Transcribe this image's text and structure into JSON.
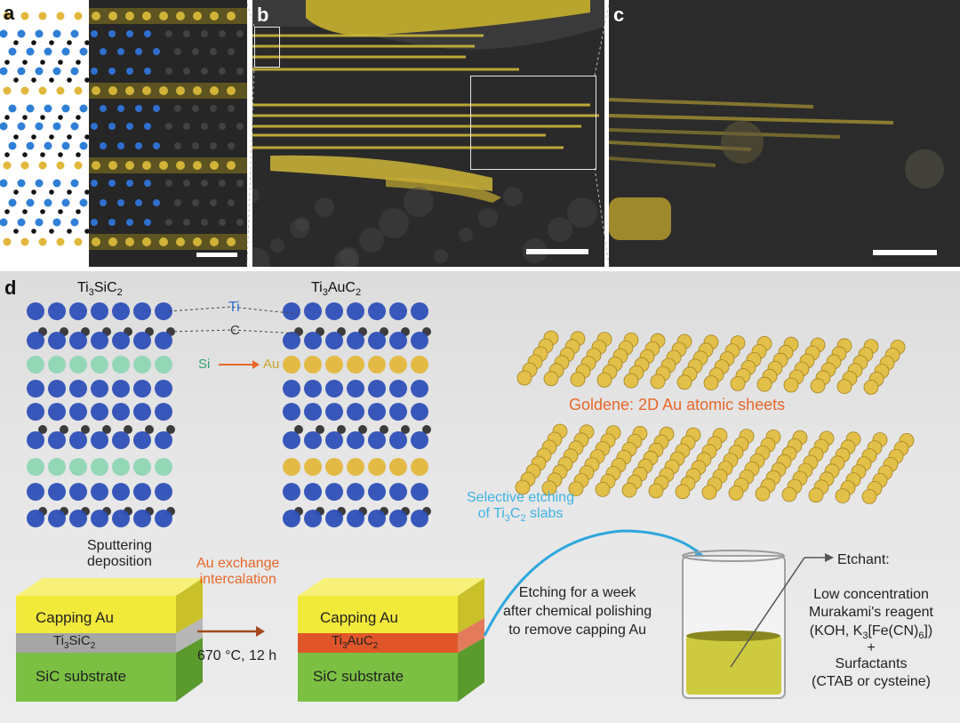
{
  "panels": {
    "a": "a",
    "b": "b",
    "c": "c",
    "d": "d"
  },
  "structure_labels": {
    "ti3sic2": {
      "pre": "Ti",
      "s1": "3",
      "mid": "SiC",
      "s2": "2"
    },
    "ti3auc2": {
      "pre": "Ti",
      "s1": "3",
      "mid": "AuC",
      "s2": "2"
    },
    "ti": "Ti",
    "c": "C",
    "si": "Si",
    "au": "Au"
  },
  "goldene_title": "Goldene: 2D Au atomic sheets",
  "selective_etching": {
    "line1": "Selective etching",
    "line2_pre": "of Ti",
    "line2_sub1": "3",
    "line2_mid": "C",
    "line2_sub2": "2",
    "line2_post": " slabs"
  },
  "sputtering": {
    "line1": "Sputtering",
    "line2": "deposition"
  },
  "au_exchange": {
    "line1": "Au exchange",
    "line2": "intercalation"
  },
  "block1": {
    "capping": "Capping Au",
    "mid": {
      "pre": "Ti",
      "s1": "3",
      "mid": "SiC",
      "s2": "2"
    },
    "substrate": "SiC substrate"
  },
  "block2": {
    "capping": "Capping Au",
    "mid": {
      "pre": "Ti",
      "s1": "3",
      "mid": "AuC",
      "s2": "2"
    },
    "substrate": "SiC substrate"
  },
  "condition": "670 °C, 12 h",
  "etching_text": [
    "Etching for a week",
    "after chemical polishing",
    "to remove capping Au"
  ],
  "etchant": {
    "title": "Etchant:",
    "l1": "Low concentration",
    "l2": "Murakami's reagent",
    "l3_pre": "(KOH, K",
    "l3_s1": "3",
    "l3_mid": "[Fe(CN)",
    "l3_s2": "6",
    "l3_post": "])",
    "plus": "+",
    "l4": "Surfactants",
    "l5": "(CTAB or cysteine)"
  },
  "colors": {
    "ti_blue": "#2e4fb8",
    "carbon": "#333333",
    "si_green": "#8fd6b4",
    "gold": "#e1b73c",
    "orange_text": "#e8672a",
    "cyan_text": "#3fb3e3",
    "capping_yellow": "#f2ea3a",
    "tisic_gray": "#a6a6a6",
    "tiauc_red": "#e0562a",
    "sic_green": "#7bc043"
  }
}
